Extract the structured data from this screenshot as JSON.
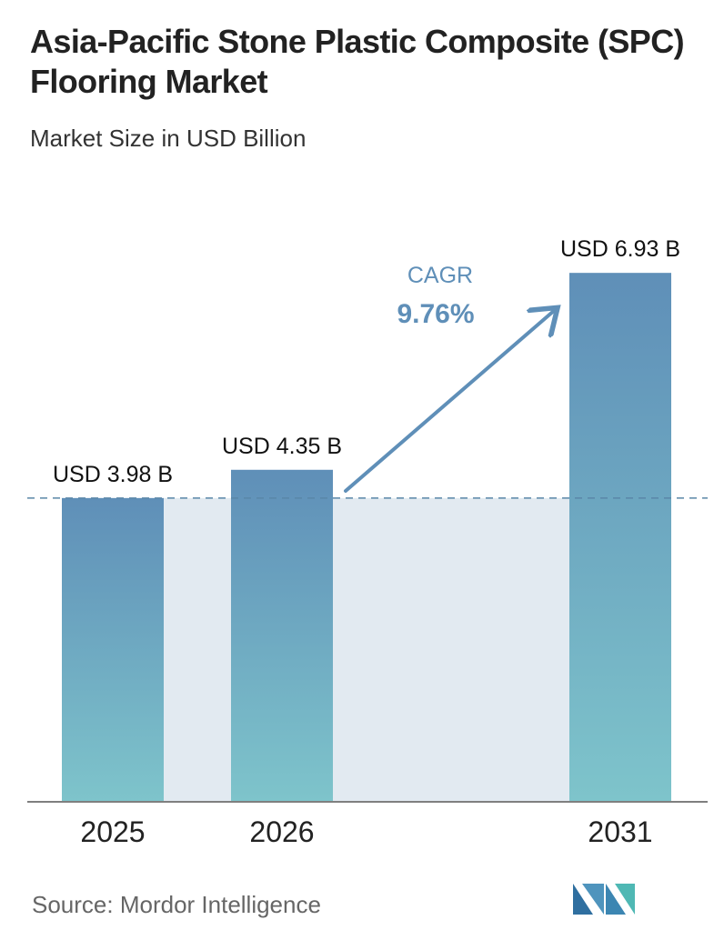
{
  "title": "Asia-Pacific Stone Plastic Composite (SPC) Flooring Market",
  "subtitle": "Market Size in USD Billion",
  "source": "Source: Mordor Intelligence",
  "cagr": {
    "label": "CAGR",
    "value": "9.76%"
  },
  "colors": {
    "bar_top": "#5f8fb8",
    "bar_bottom": "#7ec4cb",
    "band": "#e2eaf1",
    "arrow": "#5f8fb8",
    "cagr_text": "#5f8fb8",
    "dashed_line": "#5a86a8",
    "logo_left": "#2f6fa0",
    "logo_right": "#4fb8b4"
  },
  "chart_data": {
    "type": "bar",
    "categories": [
      "2025",
      "2026",
      "2031"
    ],
    "values": [
      3.98,
      4.35,
      6.93
    ],
    "data_labels": [
      "USD 3.98 B",
      "USD 4.35 B",
      "USD 6.93 B"
    ],
    "title": "Asia-Pacific Stone Plastic Composite (SPC) Flooring Market",
    "subtitle": "Market Size in USD Billion",
    "xlabel": "",
    "ylabel": "",
    "ylim": [
      0,
      8.54
    ],
    "grid": false,
    "reference_line": {
      "value": 3.98,
      "style": "dashed"
    }
  }
}
